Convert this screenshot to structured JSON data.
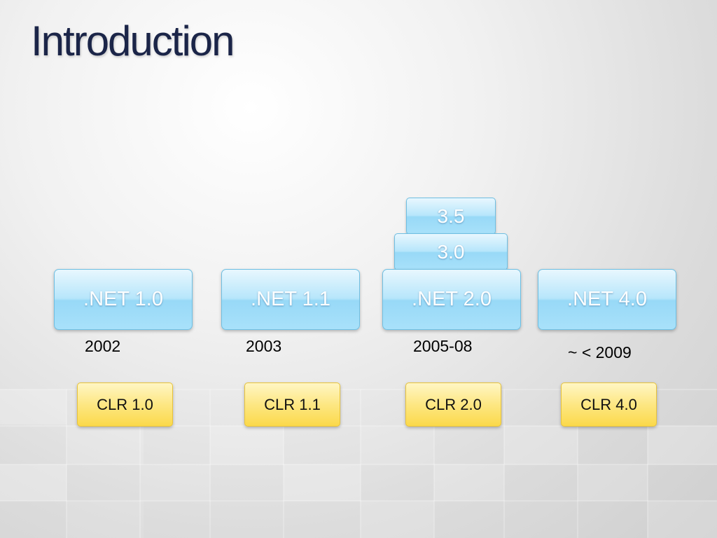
{
  "slide": {
    "title": "Introduction"
  },
  "net_versions": [
    {
      "label": ".NET 1.0",
      "year": "2002",
      "clr": "CLR 1.0"
    },
    {
      "label": ".NET 1.1",
      "year": "2003",
      "clr": "CLR 1.1"
    },
    {
      "label": ".NET 2.0",
      "year": "2005-08",
      "clr": "CLR 2.0"
    },
    {
      "label": ".NET 4.0",
      "year": "~ < 2009",
      "clr": "CLR 4.0"
    }
  ],
  "stacked_versions": [
    "3.0",
    "3.5"
  ],
  "colors": {
    "title": "#1b2548",
    "net_box": "#a8e1fa",
    "clr_box": "#fde783"
  }
}
